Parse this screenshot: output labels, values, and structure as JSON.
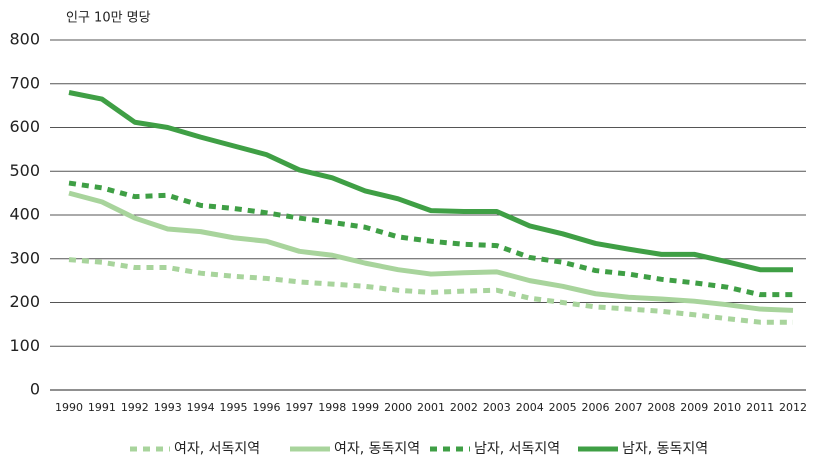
{
  "chart_data": {
    "type": "line",
    "y_axis_label": "인구 10만 명당",
    "x": [
      1990,
      1991,
      1992,
      1993,
      1994,
      1995,
      1996,
      1997,
      1998,
      1999,
      2000,
      2001,
      2002,
      2003,
      2004,
      2005,
      2006,
      2007,
      2008,
      2009,
      2010,
      2011,
      2012
    ],
    "series": [
      {
        "name": "여자, 서독지역",
        "color": "#a8d49c",
        "dashed": true,
        "values": [
          298,
          292,
          280,
          280,
          267,
          260,
          255,
          247,
          242,
          237,
          228,
          223,
          226,
          228,
          210,
          200,
          190,
          185,
          180,
          172,
          163,
          155,
          155
        ]
      },
      {
        "name": "여자, 동독지역",
        "color": "#a8d49c",
        "dashed": false,
        "values": [
          450,
          430,
          393,
          368,
          362,
          348,
          340,
          317,
          308,
          290,
          275,
          265,
          268,
          270,
          250,
          237,
          220,
          212,
          208,
          203,
          195,
          185,
          182
        ]
      },
      {
        "name": "남자, 서독지역",
        "color": "#3f9f45",
        "dashed": true,
        "values": [
          473,
          462,
          442,
          445,
          422,
          415,
          405,
          393,
          383,
          372,
          350,
          340,
          333,
          330,
          303,
          292,
          273,
          265,
          253,
          245,
          235,
          218,
          218
        ]
      },
      {
        "name": "남자, 동독지역",
        "color": "#3f9f45",
        "dashed": false,
        "values": [
          680,
          665,
          612,
          600,
          578,
          558,
          538,
          503,
          485,
          455,
          437,
          410,
          408,
          408,
          375,
          357,
          335,
          322,
          310,
          310,
          293,
          275,
          275
        ]
      }
    ],
    "ylim": [
      0,
      800
    ],
    "yticks": [
      0,
      100,
      200,
      300,
      400,
      500,
      600,
      700,
      800
    ],
    "grid": true,
    "legend": "bottom"
  }
}
